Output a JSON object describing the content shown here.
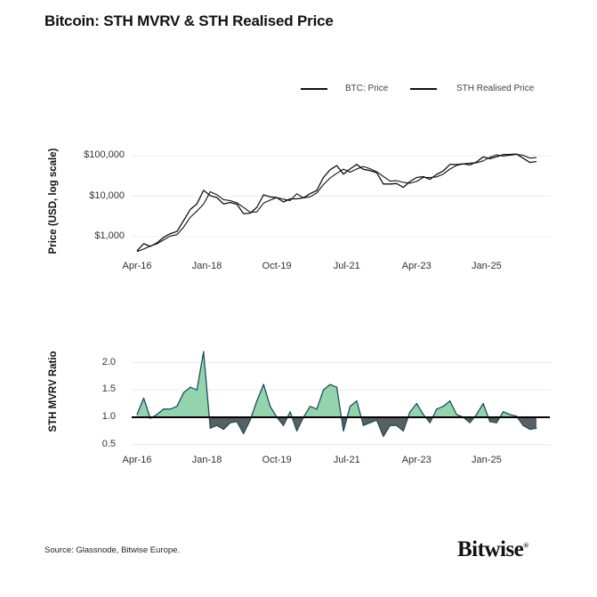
{
  "title": "Bitcoin: STH MVRV & STH Realised Price",
  "source": "Source: Glassnode, Bitwise Europe.",
  "logo_text": "Bitwise",
  "colors": {
    "price": "#111111",
    "realised": "#111111",
    "mvrv_line": "#1d4f58",
    "above_one_fill": "#93d3ad",
    "below_one_fill": "#5b5f62",
    "baseline": "#000000",
    "grid": "#ececec"
  },
  "chart_data": [
    {
      "type": "line",
      "title": "",
      "ylabel": "Price (USD, log scale)",
      "yscale": "log",
      "ylim": [
        300,
        200000
      ],
      "yticks": [
        {
          "value": 100000,
          "label": "$100,000"
        },
        {
          "value": 10000,
          "label": "$10,000"
        },
        {
          "value": 1000,
          "label": "$1,000"
        }
      ],
      "xticks": [
        "Apr-16",
        "Jan-18",
        "Oct-19",
        "Jul-21",
        "Apr-23",
        "Jan-25"
      ],
      "grid": true,
      "legend": {
        "position": "top-right",
        "entries": [
          "BTC: Price",
          "STH Realised Price"
        ]
      },
      "x": [
        "2016-04",
        "2016-06",
        "2016-08",
        "2016-10",
        "2016-12",
        "2017-02",
        "2017-04",
        "2017-06",
        "2017-08",
        "2017-10",
        "2017-12",
        "2018-02",
        "2018-04",
        "2018-06",
        "2018-08",
        "2018-10",
        "2018-12",
        "2019-02",
        "2019-04",
        "2019-06",
        "2019-08",
        "2019-10",
        "2019-12",
        "2020-02",
        "2020-04",
        "2020-06",
        "2020-08",
        "2020-10",
        "2020-12",
        "2021-02",
        "2021-04",
        "2021-06",
        "2021-08",
        "2021-10",
        "2021-12",
        "2022-02",
        "2022-04",
        "2022-06",
        "2022-08",
        "2022-10",
        "2022-12",
        "2023-02",
        "2023-04",
        "2023-06",
        "2023-08",
        "2023-10",
        "2023-12",
        "2024-02",
        "2024-04",
        "2024-06",
        "2024-08",
        "2024-10",
        "2024-12",
        "2025-02",
        "2025-04",
        "2025-06",
        "2025-08",
        "2025-10",
        "2025-12",
        "2026-02",
        "2026-04"
      ],
      "series": [
        {
          "name": "BTC: Price",
          "values": [
            450,
            670,
            575,
            700,
            960,
            1190,
            1350,
            2500,
            4700,
            6400,
            14000,
            10300,
            9200,
            6400,
            7000,
            6300,
            3700,
            3800,
            5300,
            10800,
            9600,
            9200,
            7200,
            8600,
            8600,
            9100,
            11600,
            13800,
            29000,
            45000,
            57000,
            35000,
            47000,
            61000,
            46000,
            43000,
            38000,
            20000,
            20000,
            20500,
            16500,
            23000,
            29000,
            30500,
            26000,
            34500,
            42000,
            61000,
            60500,
            62700,
            59000,
            70000,
            93400,
            84000,
            94000,
            107000,
            108000,
            110000,
            87000,
            68000,
            72000
          ]
        },
        {
          "name": "STH Realised Price",
          "values": [
            429,
            496,
            587,
            667,
            835,
            1035,
            1125,
            1724,
            3032,
            4267,
            6364,
            12875,
            10824,
            8205,
            7778,
            6848,
            5286,
            4000,
            4077,
            6750,
            8000,
            9200,
            8471,
            7818,
            11467,
            9100,
            9667,
            12000,
            19333,
            28125,
            36774,
            46667,
            39167,
            46923,
            54118,
            47778,
            40000,
            30769,
            23529,
            24118,
            22000,
            20909,
            23200,
            29048,
            28889,
            30000,
            35000,
            46923,
            57619,
            62700,
            65556,
            66667,
            74720,
            91304,
            104444,
            97273,
            102857,
            107843,
            102353,
            87179,
            90000
          ]
        }
      ]
    },
    {
      "type": "area",
      "title": "",
      "ylabel": "STH MVRV Ratio",
      "ylim": [
        0.4,
        2.4
      ],
      "baseline": 1.0,
      "yticks": [
        {
          "value": 2.0,
          "label": "2.0"
        },
        {
          "value": 1.5,
          "label": "1.5"
        },
        {
          "value": 1.0,
          "label": "1.0"
        },
        {
          "value": 0.5,
          "label": "0.5"
        }
      ],
      "xticks": [
        "Apr-16",
        "Jan-18",
        "Oct-19",
        "Jul-21",
        "Apr-23",
        "Jan-25"
      ],
      "grid": true,
      "x": [
        "2016-04",
        "2016-06",
        "2016-08",
        "2016-10",
        "2016-12",
        "2017-02",
        "2017-04",
        "2017-06",
        "2017-08",
        "2017-10",
        "2017-12",
        "2018-02",
        "2018-04",
        "2018-06",
        "2018-08",
        "2018-10",
        "2018-12",
        "2019-02",
        "2019-04",
        "2019-06",
        "2019-08",
        "2019-10",
        "2019-12",
        "2020-02",
        "2020-04",
        "2020-06",
        "2020-08",
        "2020-10",
        "2020-12",
        "2021-02",
        "2021-04",
        "2021-06",
        "2021-08",
        "2021-10",
        "2021-12",
        "2022-02",
        "2022-04",
        "2022-06",
        "2022-08",
        "2022-10",
        "2022-12",
        "2023-02",
        "2023-04",
        "2023-06",
        "2023-08",
        "2023-10",
        "2023-12",
        "2024-02",
        "2024-04",
        "2024-06",
        "2024-08",
        "2024-10",
        "2024-12",
        "2025-02",
        "2025-04",
        "2025-06",
        "2025-08",
        "2025-10",
        "2025-12",
        "2026-02",
        "2026-04"
      ],
      "values": [
        1.05,
        1.35,
        0.98,
        1.05,
        1.15,
        1.15,
        1.2,
        1.45,
        1.55,
        1.5,
        2.2,
        0.8,
        0.85,
        0.78,
        0.9,
        0.92,
        0.7,
        0.95,
        1.3,
        1.6,
        1.2,
        1.0,
        0.85,
        1.1,
        0.75,
        1.0,
        1.2,
        1.15,
        1.5,
        1.6,
        1.55,
        0.75,
        1.2,
        1.3,
        0.85,
        0.9,
        0.95,
        0.65,
        0.85,
        0.85,
        0.75,
        1.1,
        1.25,
        1.05,
        0.9,
        1.15,
        1.2,
        1.3,
        1.05,
        1.0,
        0.9,
        1.05,
        1.25,
        0.92,
        0.9,
        1.1,
        1.05,
        1.02,
        0.85,
        0.78,
        0.8
      ]
    }
  ]
}
